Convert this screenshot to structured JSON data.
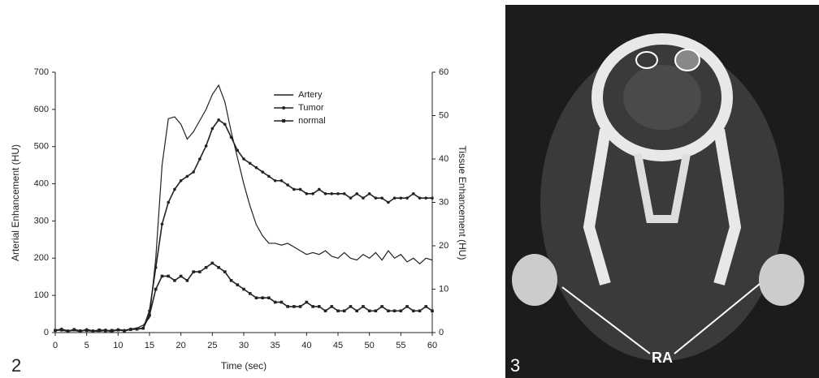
{
  "chart_data": {
    "type": "line",
    "xlabel": "Time (sec)",
    "ylabel": "Arterial Enhancement (HU)",
    "y2label": "Tissue Enhancement (HU)",
    "x": [
      0,
      1,
      2,
      3,
      4,
      5,
      6,
      7,
      8,
      9,
      10,
      11,
      12,
      13,
      14,
      15,
      16,
      17,
      18,
      19,
      20,
      21,
      22,
      23,
      24,
      25,
      26,
      27,
      28,
      29,
      30,
      31,
      32,
      33,
      34,
      35,
      36,
      37,
      38,
      39,
      40,
      41,
      42,
      43,
      44,
      45,
      46,
      47,
      48,
      49,
      50,
      51,
      52,
      53,
      54,
      55,
      56,
      57,
      58,
      59,
      60
    ],
    "series": [
      {
        "name": "Artery",
        "color": "#222222",
        "marker": "none",
        "values": [
          5,
          8,
          3,
          6,
          2,
          9,
          4,
          3,
          6,
          2,
          8,
          5,
          10,
          12,
          20,
          40,
          200,
          450,
          575,
          580,
          560,
          520,
          540,
          570,
          600,
          640,
          665,
          620,
          540,
          470,
          400,
          340,
          290,
          260,
          240,
          240,
          235,
          240,
          230,
          220,
          210,
          215,
          210,
          220,
          205,
          200,
          215,
          200,
          195,
          210,
          200,
          215,
          195,
          220,
          200,
          210,
          190,
          200,
          185,
          200,
          195
        ]
      },
      {
        "name": "Tumor",
        "color": "#222222",
        "marker": "circle",
        "axis": "y2",
        "values": [
          0.5,
          0.8,
          0.4,
          0.6,
          0.3,
          0.7,
          0.4,
          0.5,
          0.6,
          0.3,
          0.7,
          0.5,
          0.8,
          0.9,
          1,
          5,
          15,
          25,
          30,
          33,
          35,
          36,
          37,
          40,
          43,
          47,
          49,
          48,
          45,
          42,
          40,
          39,
          38,
          37,
          36,
          35,
          35,
          34,
          33,
          33,
          32,
          32,
          33,
          32,
          32,
          32,
          32,
          31,
          32,
          31,
          32,
          31,
          31,
          30,
          31,
          31,
          31,
          32,
          31,
          31,
          31
        ]
      },
      {
        "name": "normal",
        "color": "#222222",
        "marker": "square",
        "axis": "y2",
        "values": [
          0.5,
          0.6,
          0.3,
          0.7,
          0.4,
          0.5,
          0.3,
          0.6,
          0.4,
          0.5,
          0.6,
          0.4,
          0.7,
          0.8,
          1,
          4,
          10,
          13,
          13,
          12,
          13,
          12,
          14,
          14,
          15,
          16,
          15,
          14,
          12,
          11,
          10,
          9,
          8,
          8,
          8,
          7,
          7,
          6,
          6,
          6,
          7,
          6,
          6,
          5,
          6,
          5,
          5,
          6,
          5,
          6,
          5,
          5,
          6,
          5,
          5,
          5,
          6,
          5,
          5,
          6,
          5
        ]
      }
    ],
    "xlim": [
      0,
      60
    ],
    "xticks": [
      0,
      5,
      10,
      15,
      20,
      25,
      30,
      35,
      40,
      45,
      50,
      55,
      60
    ],
    "ylim": [
      0,
      700
    ],
    "yticks": [
      0,
      100,
      200,
      300,
      400,
      500,
      600,
      700
    ],
    "y2lim": [
      0,
      60
    ],
    "y2ticks": [
      0,
      10,
      20,
      30,
      40,
      50,
      60
    ],
    "legend": "top",
    "grid": false
  },
  "panels": {
    "left_label": "2",
    "right_label": "3",
    "annotation": "RA"
  }
}
